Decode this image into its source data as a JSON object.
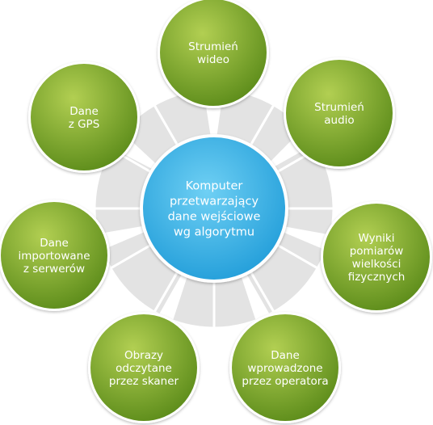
{
  "hub": {
    "lines": [
      "Komputer",
      "przetwarzający",
      "dane wejściowe",
      "wg algorytmu"
    ]
  },
  "nodes": [
    {
      "id": "video",
      "lines": [
        "Strumień",
        "wideo"
      ]
    },
    {
      "id": "audio",
      "lines": [
        "Strumień",
        "audio"
      ]
    },
    {
      "id": "physical",
      "lines": [
        "Wyniki",
        "pomiarów",
        "wielkości",
        "fizycznych"
      ]
    },
    {
      "id": "operator",
      "lines": [
        "Dane",
        "wprowadzone",
        "przez operatora"
      ]
    },
    {
      "id": "scanner",
      "lines": [
        "Obrazy",
        "odczytane",
        "przez skaner"
      ]
    },
    {
      "id": "server",
      "lines": [
        "Dane",
        "importowane",
        "z serwerów"
      ]
    },
    {
      "id": "gps",
      "lines": [
        "Dane",
        "z GPS"
      ]
    }
  ],
  "colors": {
    "node_light": "#b2cf52",
    "node_dark": "#5f8e1c",
    "hub_light": "#6fd0f4",
    "hub_dark": "#1e9bd8",
    "ring": "#e3e3e3",
    "ring_stroke": "#ffffff"
  }
}
